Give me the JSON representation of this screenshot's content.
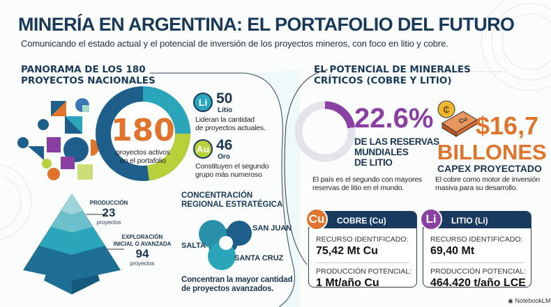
{
  "title": "MINERÍA EN ARGENTINA: EL PORTAFOLIO DEL FUTURO",
  "subtitle": "Comunicando el estado actual y el potencial de inversión de los proyectos mineros, con foco en litio y cobre.",
  "left": {
    "heading_line1": "PANORAMA DE LOS 180",
    "heading_line2": "PROYECTOS NACIONALES",
    "donut": {
      "total": "180",
      "caption1": "proyectos activos",
      "caption2": "en el portafolio"
    },
    "lithium": {
      "symbol": "Li",
      "count": "50",
      "name": "Litio",
      "desc1": "Lideran la cantidad",
      "desc2": "de proyectos actuales."
    },
    "gold": {
      "symbol": "Au",
      "count": "46",
      "name": "Oro",
      "desc1": "Constituyen el segundo",
      "desc2": "grupo más numeroso"
    },
    "pyramid": {
      "production_label": "PRODUCCIÓN",
      "production_count": "23",
      "production_unit": "proyectos",
      "exploration_label1": "EXPLORACIÓN",
      "exploration_label2": "INICIAL O AVANZADA",
      "exploration_count": "94",
      "exploration_unit": "proyectos"
    },
    "region": {
      "heading1": "CONCENTRACIÓN",
      "heading2": "REGIONAL ESTRATÉGICA",
      "province1": "SAN JUAN",
      "province2": "SALTA",
      "province3": "SANTA CRUZ",
      "desc1": "Concentran la mayor cantidad",
      "desc2": "de proyectos avanzados."
    }
  },
  "right": {
    "heading_line1": "EL POTENCIAL DE MINERALES",
    "heading_line2": "CRÍTICOS (COBRE Y LITIO)",
    "reserves": {
      "percent": "22.6%",
      "percent_value": 22.6,
      "line1": "DE LAS RESERVAS",
      "line2": "MUNDIALES",
      "line3": "DE LITIO",
      "desc1": "El país es el segundo con mayores",
      "desc2": "reservas de litio en el mundo."
    },
    "capex": {
      "amount": "$16,7",
      "unit": "BILLONES",
      "label": "CAPEX PROYECTADO",
      "desc1": "El cobre como motor de inversión",
      "desc2": "masiva para su desarrollo.",
      "bar_label": "Cu"
    },
    "copper_card": {
      "symbol": "Cu",
      "title": "COBRE (Cu)",
      "resource_label": "RECURSO IDENTIFICADO:",
      "resource_value": "75,42 Mt Cu",
      "production_label": "PRODUCCIÓN POTENCIAL:",
      "production_value": "1 Mt/año Cu"
    },
    "lithium_card": {
      "symbol": "Li",
      "title": "LITIO (Li)",
      "resource_label": "RECURSO IDENTIFICADO:",
      "resource_value": "69,40 Mt",
      "production_label": "PRODUCCIÓN POTENCIAL:",
      "production_value": "464.420 t/año LCE"
    }
  },
  "footer": {
    "brand": "NotebookLM"
  },
  "colors": {
    "navy": "#173a5e",
    "orange": "#e0742c",
    "purple": "#8a3fa2",
    "teal": "#2aa5b9",
    "lime": "#b8d03a"
  }
}
